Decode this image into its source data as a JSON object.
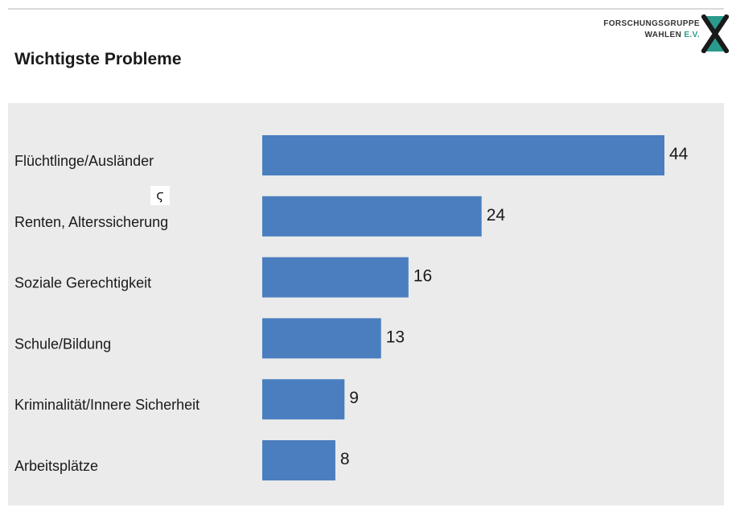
{
  "header": {
    "title": "Wichtigste Probleme"
  },
  "logo": {
    "line1": "FORSCHUNGSGRUPPE",
    "line2_main": "WAHLEN",
    "line2_accent": "E.V.",
    "icon": "fgw-x-logo-icon"
  },
  "overlay": {
    "glyph": "ϛ",
    "icon": "cursor-glyph-icon"
  },
  "colors": {
    "bar": "#4a7ebf",
    "panel": "#ebebeb",
    "accent": "#2a9a8c"
  },
  "chart_data": {
    "type": "bar",
    "orientation": "horizontal",
    "title": "Wichtigste Probleme",
    "categories": [
      "Flüchtlinge/Ausländer",
      "Renten, Alterssicherung",
      "Soziale Gerechtigkeit",
      "Schule/Bildung",
      "Kriminalität/Innere Sicherheit",
      "Arbeitsplätze"
    ],
    "values": [
      44,
      24,
      16,
      13,
      9,
      8
    ],
    "value_labels": [
      "44",
      "24",
      "16",
      "13",
      "9",
      "8"
    ],
    "xlim": [
      0,
      44
    ],
    "grid": false,
    "legend": "none"
  }
}
